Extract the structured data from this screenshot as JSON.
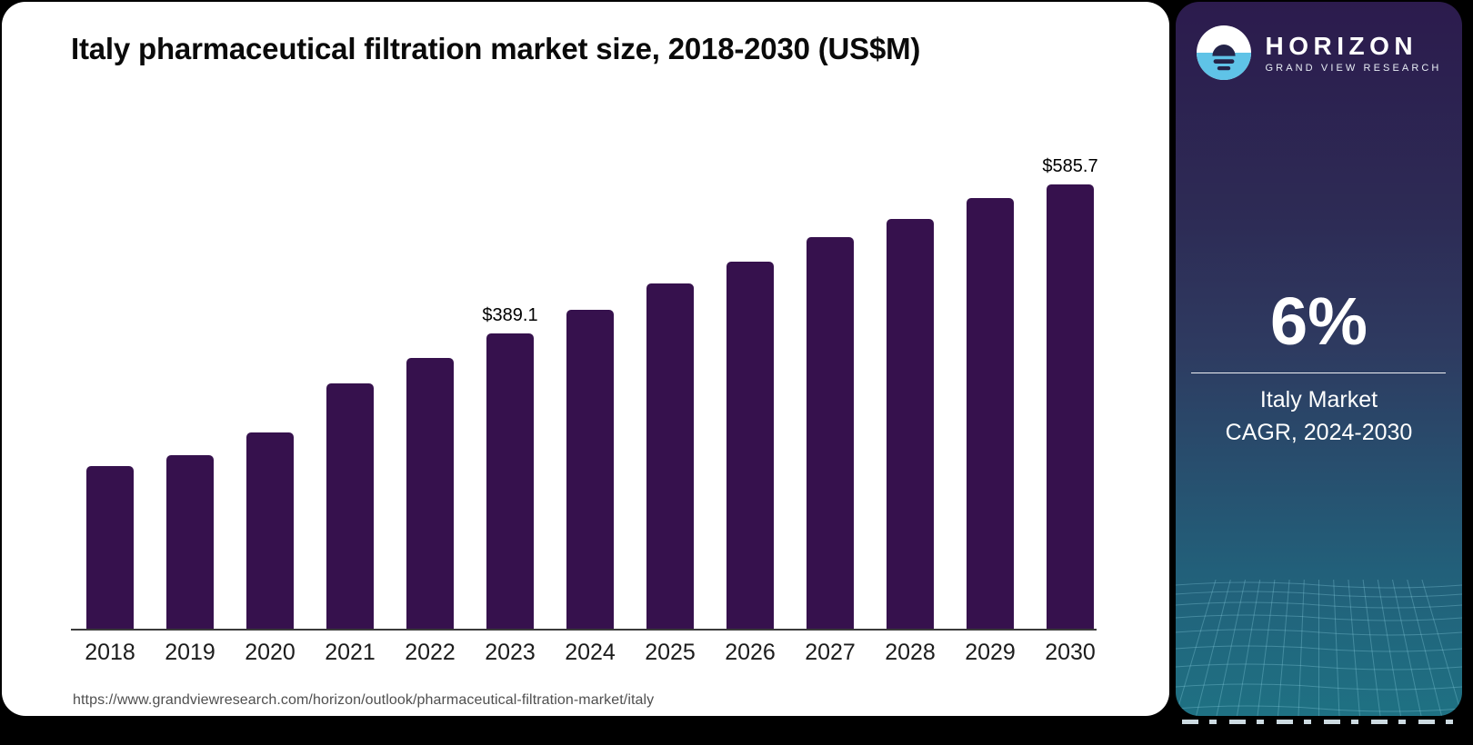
{
  "chart_card": {
    "title": "Italy pharmaceutical filtration market size, 2018-2030 (US$M)",
    "source_url": "https://www.grandviewresearch.com/horizon/outlook/pharmaceutical-filtration-market/italy"
  },
  "chart_data": {
    "type": "bar",
    "title": "Italy pharmaceutical filtration market size, 2018-2030 (US$M)",
    "categories": [
      "2018",
      "2019",
      "2020",
      "2021",
      "2022",
      "2023",
      "2024",
      "2025",
      "2026",
      "2027",
      "2028",
      "2029",
      "2030"
    ],
    "values": [
      214.4,
      228.8,
      258.7,
      323.4,
      356.9,
      389.1,
      420.4,
      455.0,
      483.9,
      515.9,
      540.5,
      567.7,
      585.7
    ],
    "bar_labels": [
      "",
      "",
      "",
      "",
      "",
      "$389.1",
      "",
      "",
      "",
      "",
      "",
      "",
      "$585.7"
    ],
    "bar_color": "#36114d",
    "xlabel": "",
    "ylabel": "",
    "ylim": [
      0,
      620
    ],
    "grid": false,
    "legend": false,
    "y_axis_ticks_visible": false
  },
  "sidebar": {
    "logo": {
      "brand": "HORIZON",
      "sub_brand": "GRAND VIEW RESEARCH"
    },
    "stat_value": "6%",
    "stat_label_line1": "Italy Market",
    "stat_label_line2": "CAGR, 2024-2030",
    "colors": {
      "gradient_top": "#2c1b4d",
      "gradient_mid": "#2e3a60",
      "gradient_bottom": "#1f7183",
      "logo_blue": "#5fc3e7",
      "logo_dark": "#242348",
      "bar_purple": "#36114d"
    }
  }
}
